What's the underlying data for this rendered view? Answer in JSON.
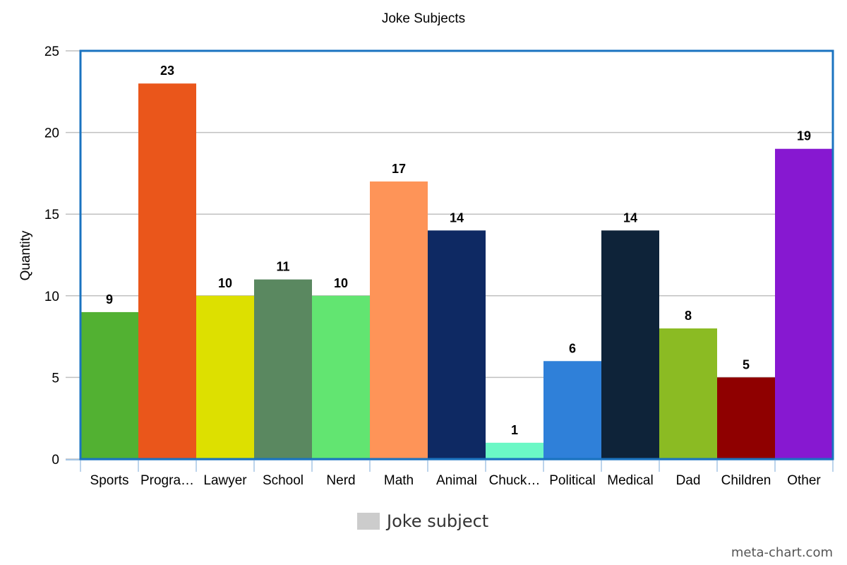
{
  "chart_data": {
    "type": "bar",
    "title": "Joke Subjects",
    "xlabel": "",
    "ylabel": "Quantity",
    "ylim": [
      0,
      25
    ],
    "yticks": [
      0,
      5,
      10,
      15,
      20,
      25
    ],
    "grid": true,
    "legend_position": "bottom",
    "categories": [
      "Sports",
      "Progra…",
      "Lawyer",
      "School",
      "Nerd",
      "Math",
      "Animal",
      "Chuck…",
      "Political",
      "Medical",
      "Dad",
      "Children",
      "Other"
    ],
    "series": [
      {
        "name": "Joke subject",
        "values": [
          9,
          23,
          10,
          11,
          10,
          17,
          14,
          1,
          6,
          14,
          8,
          5,
          19
        ]
      }
    ],
    "bar_colors": [
      "#52b132",
      "#ea561b",
      "#dde000",
      "#5a8860",
      "#62e571",
      "#fe9458",
      "#0e2963",
      "#6bf8c6",
      "#2f80d9",
      "#0e2339",
      "#8bbb23",
      "#8f0000",
      "#8718d1"
    ],
    "legend_color": "#cccccc",
    "frame_color": "#1a73c0"
  },
  "legend": {
    "label": "Joke subject"
  },
  "credit": "meta-chart.com"
}
